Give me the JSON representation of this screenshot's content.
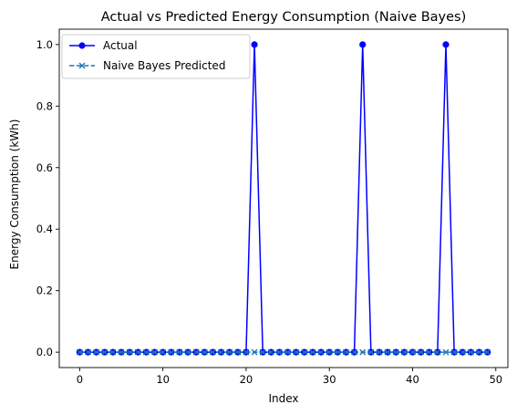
{
  "chart_data": {
    "type": "line",
    "title": "Actual vs Predicted Energy Consumption (Naive Bayes)",
    "xlabel": "Index",
    "ylabel": "Energy Consumption (kWh)",
    "xlim": [
      -2.45,
      51.45
    ],
    "ylim": [
      -0.05,
      1.05
    ],
    "x_ticks": [
      0,
      10,
      20,
      30,
      40,
      50
    ],
    "y_ticks": [
      0.0,
      0.2,
      0.4,
      0.6,
      0.8,
      1.0
    ],
    "x_tick_labels": [
      "0",
      "10",
      "20",
      "30",
      "40",
      "50"
    ],
    "y_tick_labels": [
      "0.0",
      "0.2",
      "0.4",
      "0.6",
      "0.8",
      "1.0"
    ],
    "grid": false,
    "legend_position": "top-left",
    "x": [
      0,
      1,
      2,
      3,
      4,
      5,
      6,
      7,
      8,
      9,
      10,
      11,
      12,
      13,
      14,
      15,
      16,
      17,
      18,
      19,
      20,
      21,
      22,
      23,
      24,
      25,
      26,
      27,
      28,
      29,
      30,
      31,
      32,
      33,
      34,
      35,
      36,
      37,
      38,
      39,
      40,
      41,
      42,
      43,
      44,
      45,
      46,
      47,
      48,
      49
    ],
    "series": [
      {
        "name": "Actual",
        "style": "solid",
        "marker": "circle",
        "color": "#0000ff",
        "values": [
          0,
          0,
          0,
          0,
          0,
          0,
          0,
          0,
          0,
          0,
          0,
          0,
          0,
          0,
          0,
          0,
          0,
          0,
          0,
          0,
          0,
          1,
          0,
          0,
          0,
          0,
          0,
          0,
          0,
          0,
          0,
          0,
          0,
          0,
          1,
          0,
          0,
          0,
          0,
          0,
          0,
          0,
          0,
          0,
          1,
          0,
          0,
          0,
          0,
          0
        ]
      },
      {
        "name": "Naive Bayes Predicted",
        "style": "dashed",
        "marker": "x",
        "color": "#1f77b4",
        "values": [
          0,
          0,
          0,
          0,
          0,
          0,
          0,
          0,
          0,
          0,
          0,
          0,
          0,
          0,
          0,
          0,
          0,
          0,
          0,
          0,
          0,
          0,
          0,
          0,
          0,
          0,
          0,
          0,
          0,
          0,
          0,
          0,
          0,
          0,
          0,
          0,
          0,
          0,
          0,
          0,
          0,
          0,
          0,
          0,
          0,
          0,
          0,
          0,
          0,
          0
        ]
      }
    ]
  }
}
